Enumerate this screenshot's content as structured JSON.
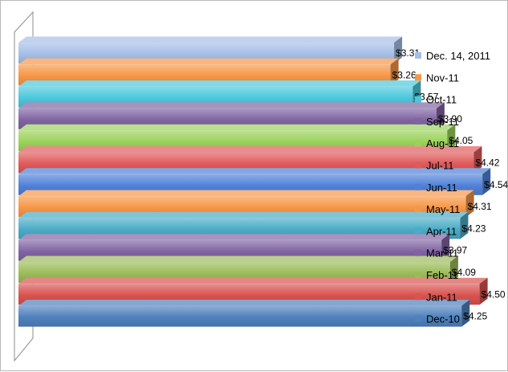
{
  "chart_data": {
    "type": "bar",
    "orientation": "horizontal",
    "style": "3d-clustered-bar",
    "title": "",
    "xlabel": "",
    "ylabel": "",
    "categories": [
      "Dec. 14, 2011",
      "Nov-11",
      "Oct-11",
      "Sep-11",
      "Aug-11",
      "Jul-11",
      "Jun-11",
      "May-11",
      "Apr-11",
      "Mar-11",
      "Feb-11",
      "Jan-11",
      "Dec-10"
    ],
    "values": [
      3.31,
      3.26,
      3.57,
      3.9,
      4.05,
      4.42,
      4.54,
      4.31,
      4.23,
      3.97,
      4.09,
      4.5,
      4.25
    ],
    "value_labels": [
      "$3.31",
      "$3.26",
      "$3.57",
      "$3.90",
      "$4.05",
      "$4.42",
      "$4.54",
      "$4.31",
      "$4.23",
      "$3.97",
      "$4.09",
      "$4.50",
      "$4.25"
    ],
    "colors": [
      "#a6bfe6",
      "#f79646",
      "#4bc8dc",
      "#8064a2",
      "#9bd35a",
      "#e05a5a",
      "#4f81d9",
      "#f79646",
      "#4aacc6",
      "#8064a2",
      "#9bbb59",
      "#d9534f",
      "#4f81bd"
    ],
    "xlim": [
      0,
      5
    ],
    "axes_visible": false,
    "grid": false,
    "legend": "right"
  }
}
